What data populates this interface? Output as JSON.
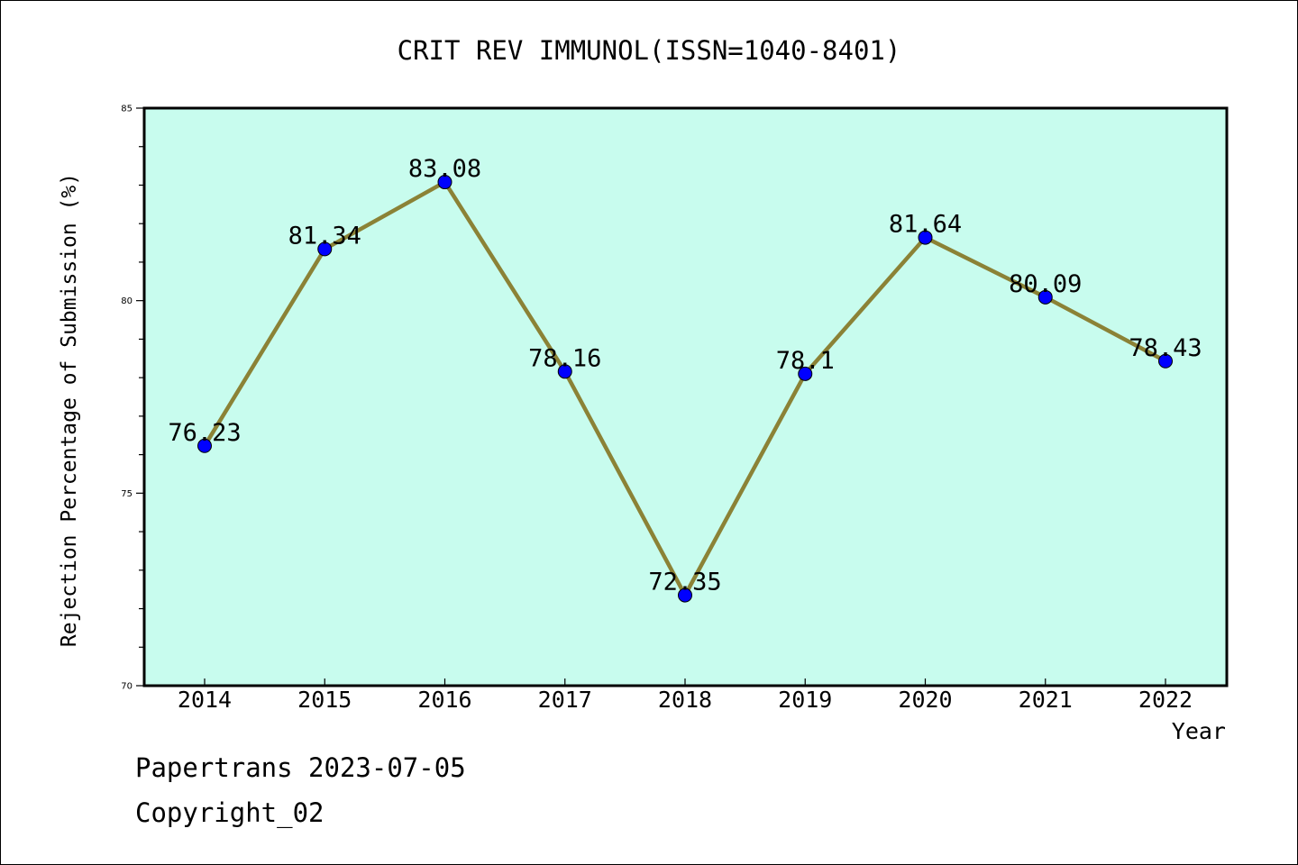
{
  "chart_data": {
    "type": "line",
    "title": "CRIT REV IMMUNOL(ISSN=1040-8401)",
    "xlabel": "Year",
    "ylabel": "Rejection Percentage of Submission (%)",
    "categories": [
      "2014",
      "2015",
      "2016",
      "2017",
      "2018",
      "2019",
      "2020",
      "2021",
      "2022"
    ],
    "values": [
      76.23,
      81.34,
      83.08,
      78.16,
      72.35,
      78.1,
      81.64,
      80.09,
      78.43
    ],
    "data_labels": [
      "76.23",
      "81.34",
      "83.08",
      "78.16",
      "72.35",
      "78.1",
      "81.64",
      "80.09",
      "78.43"
    ],
    "ylim": [
      70,
      85
    ],
    "yticks": [
      70,
      75,
      80,
      85
    ],
    "ytick_labels": [
      "70",
      "75",
      "80",
      "85"
    ],
    "minor_ytick_step": 1,
    "grid": false,
    "line_color": "#8b8236",
    "marker_color": "#0000ff",
    "plot_background": "#c8fcee"
  },
  "footer": {
    "line1": "Papertrans 2023-07-05",
    "line2": "Copyright_02"
  }
}
